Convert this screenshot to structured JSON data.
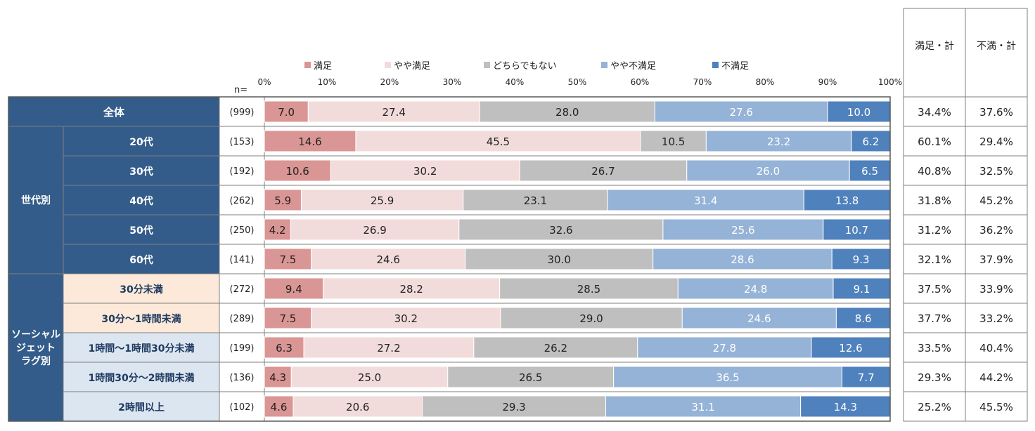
{
  "chart_data": {
    "type": "bar",
    "stacked": true,
    "orientation": "horizontal",
    "n_label": "n=",
    "x_ticks": [
      "0%",
      "10%",
      "20%",
      "30%",
      "40%",
      "50%",
      "60%",
      "70%",
      "80%",
      "90%",
      "100%"
    ],
    "xlim": [
      0,
      100
    ],
    "legend_position": "top",
    "series": [
      {
        "name": "満足",
        "color": "#d99694"
      },
      {
        "name": "やや満足",
        "color": "#f2dcdb"
      },
      {
        "name": "どちらでもない",
        "color": "#bfbfbf"
      },
      {
        "name": "やや不満足",
        "color": "#95b3d7"
      },
      {
        "name": "不満足",
        "color": "#4f81bd"
      }
    ],
    "summary_headers": [
      "満足・計",
      "不満・計"
    ],
    "groups": [
      {
        "label": "",
        "rows": [
          {
            "label": "全体",
            "n": "(999)",
            "values": [
              7.0,
              27.4,
              28.0,
              27.6,
              10.0
            ],
            "value_labels": [
              "7.0",
              "27.4",
              "28.0",
              "27.6",
              "10.0"
            ],
            "summary": [
              "34.4%",
              "37.6%"
            ]
          }
        ]
      },
      {
        "label": "世代別",
        "rows": [
          {
            "label": "20代",
            "n": "(153)",
            "values": [
              14.6,
              45.5,
              10.5,
              23.2,
              6.2
            ],
            "value_labels": [
              "14.6",
              "45.5",
              "10.5",
              "23.2",
              "6.2"
            ],
            "summary": [
              "60.1%",
              "29.4%"
            ]
          },
          {
            "label": "30代",
            "n": "(192)",
            "values": [
              10.6,
              30.2,
              26.7,
              26.0,
              6.5
            ],
            "value_labels": [
              "10.6",
              "30.2",
              "26.7",
              "26.0",
              "6.5"
            ],
            "summary": [
              "40.8%",
              "32.5%"
            ]
          },
          {
            "label": "40代",
            "n": "(262)",
            "values": [
              5.9,
              25.9,
              23.1,
              31.4,
              13.8
            ],
            "value_labels": [
              "5.9",
              "25.9",
              "23.1",
              "31.4",
              "13.8"
            ],
            "summary": [
              "31.8%",
              "45.2%"
            ]
          },
          {
            "label": "50代",
            "n": "(250)",
            "values": [
              4.2,
              26.9,
              32.6,
              25.6,
              10.7
            ],
            "value_labels": [
              "4.2",
              "26.9",
              "32.6",
              "25.6",
              "10.7"
            ],
            "summary": [
              "31.2%",
              "36.2%"
            ]
          },
          {
            "label": "60代",
            "n": "(141)",
            "values": [
              7.5,
              24.6,
              30.0,
              28.6,
              9.3
            ],
            "value_labels": [
              "7.5",
              "24.6",
              "30.0",
              "28.6",
              "9.3"
            ],
            "summary": [
              "32.1%",
              "37.9%"
            ]
          }
        ]
      },
      {
        "label": "ソーシャル\nジェット\nラグ別",
        "rows": [
          {
            "label": "30分未満",
            "n": "(272)",
            "values": [
              9.4,
              28.2,
              28.5,
              24.8,
              9.1
            ],
            "value_labels": [
              "9.4",
              "28.2",
              "28.5",
              "24.8",
              "9.1"
            ],
            "summary": [
              "37.5%",
              "33.9%"
            ]
          },
          {
            "label": "30分～1時間未満",
            "n": "(289)",
            "values": [
              7.5,
              30.2,
              29.0,
              24.6,
              8.6
            ],
            "value_labels": [
              "7.5",
              "30.2",
              "29.0",
              "24.6",
              "8.6"
            ],
            "summary": [
              "37.7%",
              "33.2%"
            ]
          },
          {
            "label": "1時間～1時間30分未満",
            "n": "(199)",
            "values": [
              6.3,
              27.2,
              26.2,
              27.8,
              12.6
            ],
            "value_labels": [
              "6.3",
              "27.2",
              "26.2",
              "27.8",
              "12.6"
            ],
            "summary": [
              "33.5%",
              "40.4%"
            ]
          },
          {
            "label": "1時間30分～2時間未満",
            "n": "(136)",
            "values": [
              4.3,
              25.0,
              26.5,
              36.5,
              7.7
            ],
            "value_labels": [
              "4.3",
              "25.0",
              "26.5",
              "36.5",
              "7.7"
            ],
            "summary": [
              "29.3%",
              "44.2%"
            ]
          },
          {
            "label": "2時間以上",
            "n": "(102)",
            "values": [
              4.6,
              20.6,
              29.3,
              31.1,
              14.3
            ],
            "value_labels": [
              "4.6",
              "20.6",
              "29.3",
              "31.1",
              "14.3"
            ],
            "summary": [
              "25.2%",
              "45.5%"
            ]
          }
        ]
      }
    ]
  },
  "colors": {
    "group_header_bg": "#335c8a",
    "group_header_text": "#ffffff",
    "jetlag_row_bg_a": "#fde9d9",
    "jetlag_row_bg_b": "#dce6f1",
    "jetlag_row_text": "#1f3a60",
    "border": "#7f7f7f",
    "white_label_series": [
      3,
      4
    ]
  }
}
